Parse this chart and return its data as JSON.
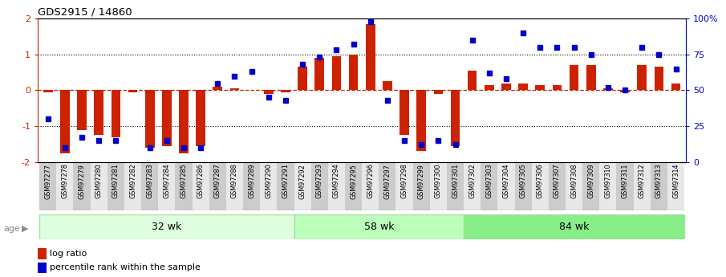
{
  "title": "GDS2915 / 14860",
  "samples": [
    "GSM97277",
    "GSM97278",
    "GSM97279",
    "GSM97280",
    "GSM97281",
    "GSM97282",
    "GSM97283",
    "GSM97284",
    "GSM97285",
    "GSM97286",
    "GSM97287",
    "GSM97288",
    "GSM97289",
    "GSM97290",
    "GSM97291",
    "GSM97292",
    "GSM97293",
    "GSM97294",
    "GSM97295",
    "GSM97296",
    "GSM97297",
    "GSM97298",
    "GSM97299",
    "GSM97300",
    "GSM97301",
    "GSM97302",
    "GSM97303",
    "GSM97304",
    "GSM97305",
    "GSM97306",
    "GSM97307",
    "GSM97308",
    "GSM97309",
    "GSM97310",
    "GSM97311",
    "GSM97312",
    "GSM97313",
    "GSM97314"
  ],
  "log_ratio": [
    -0.05,
    -1.75,
    -1.1,
    -1.25,
    -1.3,
    -0.05,
    -1.6,
    -1.55,
    -1.75,
    -1.55,
    0.1,
    0.05,
    0.0,
    -0.1,
    -0.05,
    0.65,
    0.9,
    0.95,
    1.0,
    1.85,
    0.25,
    -1.25,
    -1.7,
    -0.1,
    -1.55,
    0.55,
    0.15,
    0.2,
    0.2,
    0.15,
    0.15,
    0.7,
    0.7,
    0.05,
    -0.05,
    0.7,
    0.65,
    0.2
  ],
  "percentile_rank": [
    30,
    10,
    17,
    15,
    15,
    null,
    10,
    15,
    10,
    10,
    55,
    60,
    63,
    45,
    43,
    68,
    73,
    78,
    82,
    98,
    43,
    15,
    12,
    15,
    12,
    85,
    62,
    58,
    90,
    80,
    80,
    80,
    75,
    52,
    50,
    80,
    75,
    65
  ],
  "age_groups": [
    {
      "label": "32 wk",
      "start": 0,
      "end": 15
    },
    {
      "label": "58 wk",
      "start": 15,
      "end": 25
    },
    {
      "label": "84 wk",
      "start": 25,
      "end": 38
    }
  ],
  "bar_color": "#cc2200",
  "dot_color": "#0000cc",
  "ylim_left": [
    -2,
    2
  ],
  "ylim_right": [
    0,
    100
  ],
  "yticks_left": [
    -2,
    -1,
    0,
    1,
    2
  ],
  "yticks_right": [
    0,
    25,
    50,
    75,
    100
  ],
  "ytick_labels_right": [
    "0",
    "25",
    "50",
    "75",
    "100%"
  ],
  "tick_bg_even": "#cccccc",
  "tick_bg_odd": "#e8e8e8",
  "group_colors": [
    "#ddffdd",
    "#bbffbb",
    "#88ee88"
  ],
  "group_border_color": "#aaddaa"
}
